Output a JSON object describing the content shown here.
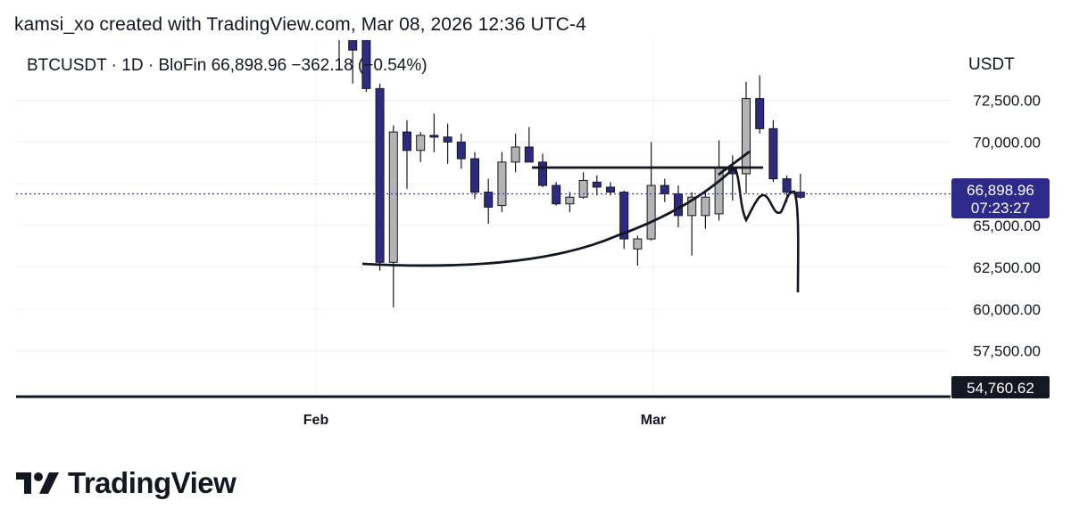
{
  "watermark": "kamsi_xo created with TradingView.com, Mar 08, 2026 12:36 UTC-4",
  "logo_text": "TradingView",
  "legend": {
    "symbol": "BTCUSDT",
    "interval": "1D",
    "exchange": "BloFin",
    "last": "66,898.96",
    "change": "−362.18",
    "change_pct": "(−0.54%)"
  },
  "price_badge": {
    "price": "66,898.96",
    "countdown": "07:23:27"
  },
  "low_badge": "54,760.62",
  "colors": {
    "bull": "#b4b4b4",
    "bear": "#2e2a7f",
    "badge": "#2e2a8c",
    "line": "#131722",
    "price_line": "#3a3a9a"
  },
  "chart_data": {
    "type": "candlestick",
    "y_unit": "USDT",
    "y_ticks": [
      "72,500.00",
      "70,000.00",
      "67,500.00",
      "65,000.00",
      "62,500.00",
      "60,000.00",
      "57,500.00"
    ],
    "y_tick_values": [
      72500,
      70000,
      67500,
      65000,
      62500,
      60000,
      57500
    ],
    "x_ticks": [
      "Feb",
      "Mar"
    ],
    "x_tick_index": [
      0,
      20
    ],
    "ylim": [
      54760.62,
      76100
    ],
    "current_price": 66898.96,
    "low_line": 54760.62,
    "resistance_level": 67600,
    "candles": [
      {
        "o": 78000,
        "h": 79000,
        "l": 74800,
        "c": 76200
      },
      {
        "o": 77000,
        "h": 77500,
        "l": 73500,
        "c": 75500
      },
      {
        "o": 76200,
        "h": 76200,
        "l": 73000,
        "c": 73200
      },
      {
        "o": 73200,
        "h": 73500,
        "l": 62300,
        "c": 62800
      },
      {
        "o": 62800,
        "h": 71000,
        "l": 60100,
        "c": 70600
      },
      {
        "o": 70600,
        "h": 71300,
        "l": 67200,
        "c": 69500
      },
      {
        "o": 69500,
        "h": 70600,
        "l": 68800,
        "c": 70400
      },
      {
        "o": 70400,
        "h": 71700,
        "l": 69400,
        "c": 70300
      },
      {
        "o": 70300,
        "h": 71100,
        "l": 68700,
        "c": 70000
      },
      {
        "o": 70000,
        "h": 70500,
        "l": 68400,
        "c": 69000
      },
      {
        "o": 69000,
        "h": 69400,
        "l": 66600,
        "c": 67000
      },
      {
        "o": 67000,
        "h": 67800,
        "l": 65100,
        "c": 66100
      },
      {
        "o": 66200,
        "h": 69400,
        "l": 65800,
        "c": 68800
      },
      {
        "o": 68800,
        "h": 70500,
        "l": 68200,
        "c": 69700
      },
      {
        "o": 69700,
        "h": 70900,
        "l": 68800,
        "c": 68800
      },
      {
        "o": 68800,
        "h": 69300,
        "l": 67300,
        "c": 67400
      },
      {
        "o": 67400,
        "h": 67600,
        "l": 66200,
        "c": 66300
      },
      {
        "o": 66300,
        "h": 67000,
        "l": 65800,
        "c": 66700
      },
      {
        "o": 66700,
        "h": 68200,
        "l": 66600,
        "c": 67700
      },
      {
        "o": 67600,
        "h": 68000,
        "l": 66800,
        "c": 67300
      },
      {
        "o": 67300,
        "h": 67600,
        "l": 66800,
        "c": 67000
      },
      {
        "o": 67000,
        "h": 67100,
        "l": 63600,
        "c": 64200
      },
      {
        "o": 63600,
        "h": 64400,
        "l": 62600,
        "c": 64200
      },
      {
        "o": 64200,
        "h": 70000,
        "l": 64100,
        "c": 67400
      },
      {
        "o": 67400,
        "h": 67800,
        "l": 66400,
        "c": 66900
      },
      {
        "o": 66900,
        "h": 67400,
        "l": 64900,
        "c": 65600
      },
      {
        "o": 65600,
        "h": 67000,
        "l": 63200,
        "c": 66700
      },
      {
        "o": 65600,
        "h": 67000,
        "l": 64800,
        "c": 66700
      },
      {
        "o": 65700,
        "h": 70100,
        "l": 65300,
        "c": 68500
      },
      {
        "o": 68500,
        "h": 69200,
        "l": 66500,
        "c": 68100
      },
      {
        "o": 68100,
        "h": 73600,
        "l": 66900,
        "c": 72600
      },
      {
        "o": 72600,
        "h": 74000,
        "l": 70500,
        "c": 70800
      },
      {
        "o": 70800,
        "h": 71300,
        "l": 67600,
        "c": 67800
      },
      {
        "o": 67800,
        "h": 68000,
        "l": 66400,
        "c": 67000
      },
      {
        "o": 67000,
        "h": 68100,
        "l": 66600,
        "c": 66700
      }
    ]
  }
}
